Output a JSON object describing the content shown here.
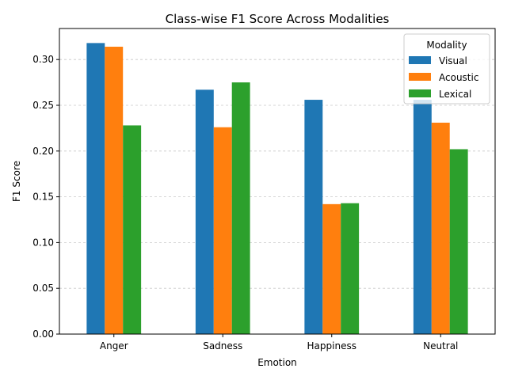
{
  "chart_data": {
    "type": "bar",
    "title": "Class-wise F1 Score Across Modalities",
    "xlabel": "Emotion",
    "ylabel": "F1 Score",
    "categories": [
      "Anger",
      "Sadness",
      "Happiness",
      "Neutral"
    ],
    "series": [
      {
        "name": "Visual",
        "color": "#1f77b4",
        "values": [
          0.318,
          0.267,
          0.256,
          0.256
        ]
      },
      {
        "name": "Acoustic",
        "color": "#ff7f0e",
        "values": [
          0.314,
          0.226,
          0.142,
          0.231
        ]
      },
      {
        "name": "Lexical",
        "color": "#2ca02c",
        "values": [
          0.228,
          0.275,
          0.143,
          0.202
        ]
      }
    ],
    "ylim": [
      0,
      0.3339
    ],
    "yticks": [
      "0.00",
      "0.05",
      "0.10",
      "0.15",
      "0.20",
      "0.25",
      "0.30"
    ],
    "grid": "y-dashed",
    "legend": {
      "title": "Modality",
      "placement": "top-right"
    }
  }
}
